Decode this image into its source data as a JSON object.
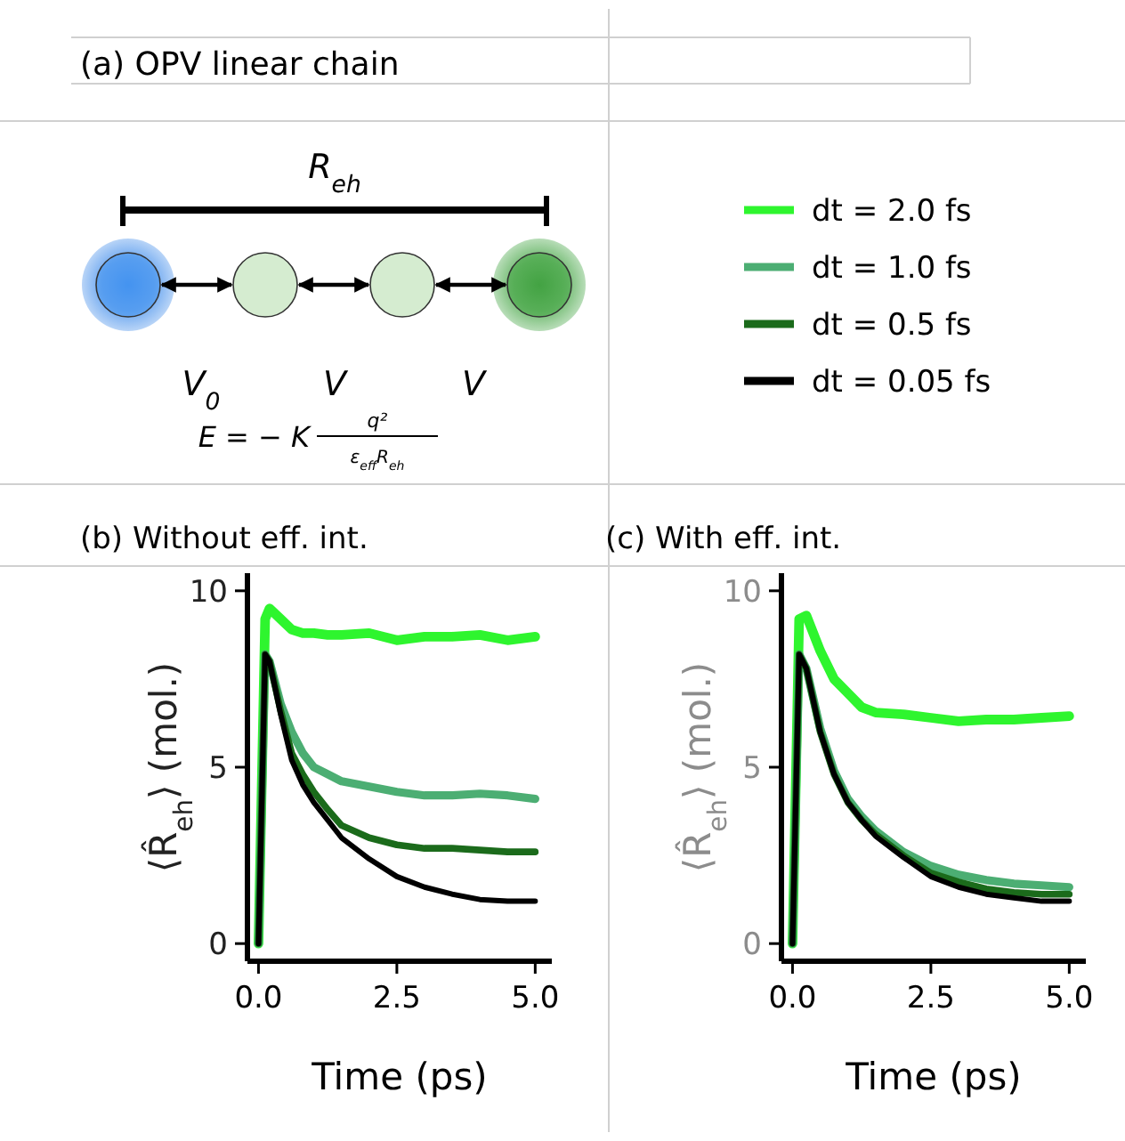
{
  "chart_data": [
    {
      "type": "other",
      "title": "(a) OPV linear chain",
      "annotations": [
        "R$_{eh}$",
        "V$_{0}$",
        "V",
        "V",
        "E = − K",
        "q²",
        "ε$_{eff}$R$_{eh}$"
      ]
    },
    {
      "type": "line",
      "title": "(b) Without eff. int.",
      "xlabel": "Time (ps)",
      "ylabel": "⟨R̂$_{eh}$⟩ (mol.)",
      "xlim": [
        -0.2,
        5.3
      ],
      "ylim": [
        -0.5,
        10.5
      ],
      "xticks": [
        {
          "value": 0,
          "label": "0.0"
        },
        {
          "value": 2.5,
          "label": "2.5"
        },
        {
          "value": 5,
          "label": "5.0"
        }
      ],
      "yticks": [
        0,
        5,
        10
      ],
      "grid": false,
      "legend": "top right",
      "x": [
        0,
        0.12,
        0.2,
        0.4,
        0.6,
        0.8,
        1.0,
        1.25,
        1.5,
        2.0,
        2.5,
        3.0,
        3.5,
        4.0,
        4.5,
        5.0
      ],
      "series": [
        {
          "name": "dt = 2.0 fs",
          "color": "#2ef52e",
          "values": [
            0,
            9.2,
            9.5,
            9.2,
            8.9,
            8.8,
            8.8,
            8.75,
            8.75,
            8.8,
            8.6,
            8.7,
            8.7,
            8.75,
            8.6,
            8.7
          ]
        },
        {
          "name": "dt = 1.0 fs",
          "color": "#4cae73",
          "values": [
            0,
            8.2,
            8.0,
            6.8,
            6.0,
            5.4,
            5.0,
            4.8,
            4.6,
            4.45,
            4.3,
            4.2,
            4.2,
            4.25,
            4.2,
            4.1
          ]
        },
        {
          "name": "dt = 0.5 fs",
          "color": "#1b6b1b",
          "values": [
            0,
            8.2,
            8.0,
            6.6,
            5.4,
            4.8,
            4.3,
            3.8,
            3.35,
            3.0,
            2.8,
            2.7,
            2.7,
            2.65,
            2.6,
            2.6
          ]
        },
        {
          "name": "dt = 0.05 fs",
          "color": "#000000",
          "values": [
            0,
            8.2,
            8.0,
            6.5,
            5.2,
            4.5,
            4.0,
            3.5,
            3.0,
            2.4,
            1.9,
            1.6,
            1.4,
            1.25,
            1.2,
            1.2
          ]
        }
      ]
    },
    {
      "type": "line",
      "title": "(c) With eff. int.",
      "xlabel": "Time (ps)",
      "ylabel": "⟨R̂$_{eh}$⟩ (mol.)",
      "xlim": [
        -0.2,
        5.3
      ],
      "ylim": [
        -0.5,
        10.5
      ],
      "xticks": [
        {
          "value": 0,
          "label": "0.0"
        },
        {
          "value": 2.5,
          "label": "2.5"
        },
        {
          "value": 5,
          "label": "5.0"
        }
      ],
      "yticks": [
        0,
        5,
        10
      ],
      "grid": false,
      "x": [
        0,
        0.12,
        0.25,
        0.5,
        0.75,
        1.0,
        1.25,
        1.5,
        2.0,
        2.5,
        3.0,
        3.5,
        4.0,
        4.5,
        5.0
      ],
      "series": [
        {
          "color": "#2ef52e",
          "values": [
            0,
            9.2,
            9.3,
            8.3,
            7.5,
            7.1,
            6.7,
            6.55,
            6.5,
            6.4,
            6.3,
            6.35,
            6.35,
            6.4,
            6.45
          ]
        },
        {
          "color": "#4cae73",
          "values": [
            0,
            8.2,
            7.8,
            6.1,
            4.9,
            4.1,
            3.6,
            3.2,
            2.6,
            2.2,
            1.95,
            1.8,
            1.7,
            1.65,
            1.6
          ]
        },
        {
          "color": "#1b6b1b",
          "values": [
            0,
            8.2,
            7.8,
            6.0,
            4.8,
            4.0,
            3.5,
            3.1,
            2.5,
            2.0,
            1.75,
            1.55,
            1.45,
            1.4,
            1.4
          ]
        },
        {
          "color": "#000000",
          "values": [
            0,
            8.2,
            7.8,
            6.0,
            4.8,
            4.0,
            3.5,
            3.05,
            2.45,
            1.9,
            1.6,
            1.4,
            1.3,
            1.2,
            1.2
          ]
        }
      ]
    }
  ]
}
